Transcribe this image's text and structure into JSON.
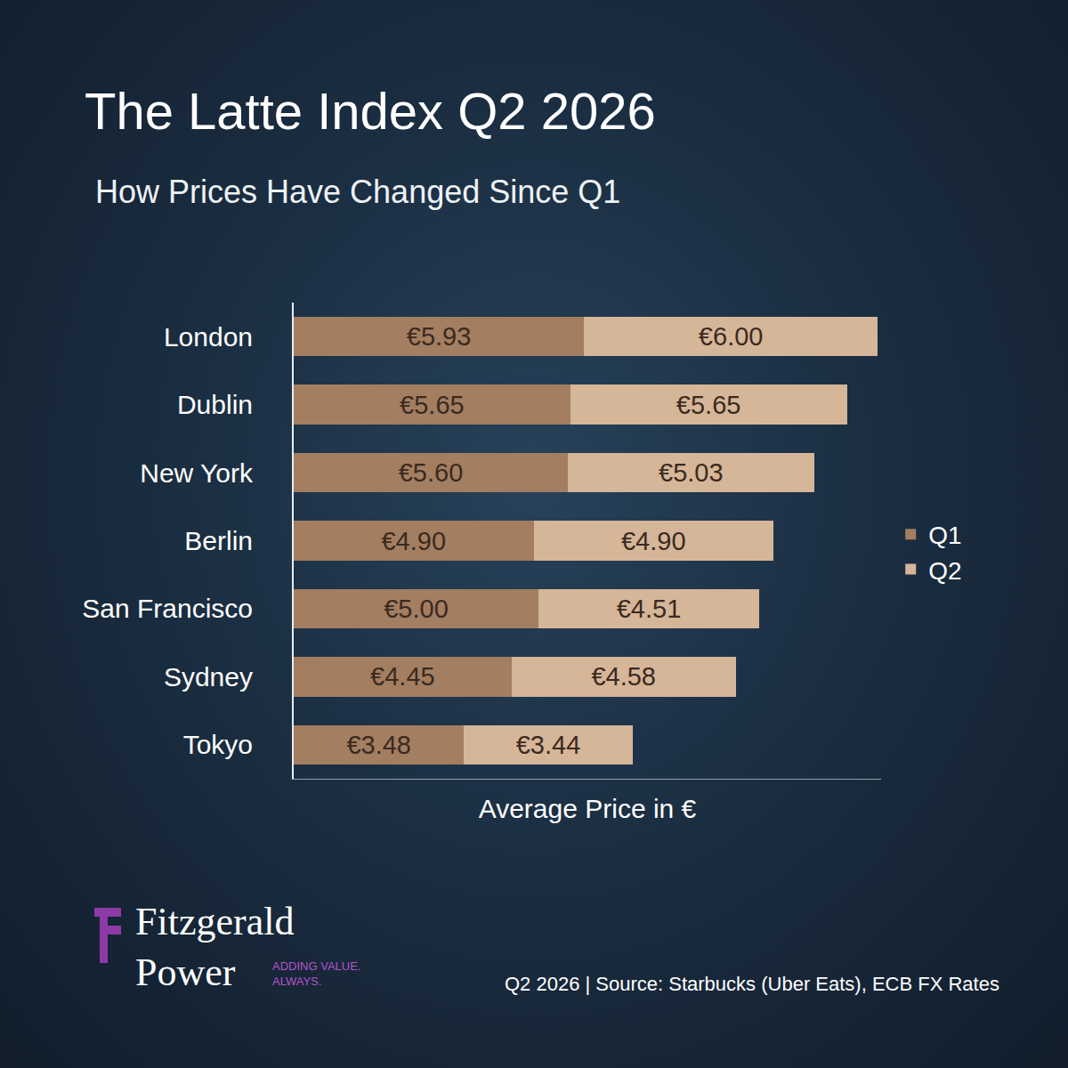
{
  "chart_data": {
    "type": "bar",
    "title": "The Latte Index Q2 2026",
    "subtitle": "How Prices Have Changed Since Q1",
    "x_label": "Average Price in €",
    "categories": [
      "London",
      "Dublin",
      "New York",
      "Berlin",
      "San Francisco",
      "Sydney",
      "Tokyo"
    ],
    "series": [
      {
        "name": "Q1",
        "color": "#a37e61",
        "values": [
          5.93,
          5.65,
          5.6,
          4.9,
          5.0,
          4.45,
          3.48
        ],
        "value_labels": [
          "€5.93",
          "€5.65",
          "€5.60",
          "€4.90",
          "€5.00",
          "€4.45",
          "€3.48"
        ]
      },
      {
        "name": "Q2",
        "color": "#d6b698",
        "values": [
          6.0,
          5.65,
          5.03,
          4.9,
          4.51,
          4.58,
          3.44
        ],
        "value_labels": [
          "€6.00",
          "€5.65",
          "€5.03",
          "€4.90",
          "€4.51",
          "€4.58",
          "€3.44"
        ]
      }
    ],
    "orientation": "horizontal",
    "stacked": true,
    "data_labels": true,
    "legend": "right",
    "grid": false,
    "tick_labels": "y",
    "xlim": [
      0,
      12
    ],
    "source": "Q2 2026 | Source: Starbucks (Uber Eats), ECB FX Rates",
    "brand": [
      "Fitzgerald",
      "Power"
    ],
    "tagline": [
      "ADDING VALUE.",
      "ALWAYS."
    ]
  }
}
